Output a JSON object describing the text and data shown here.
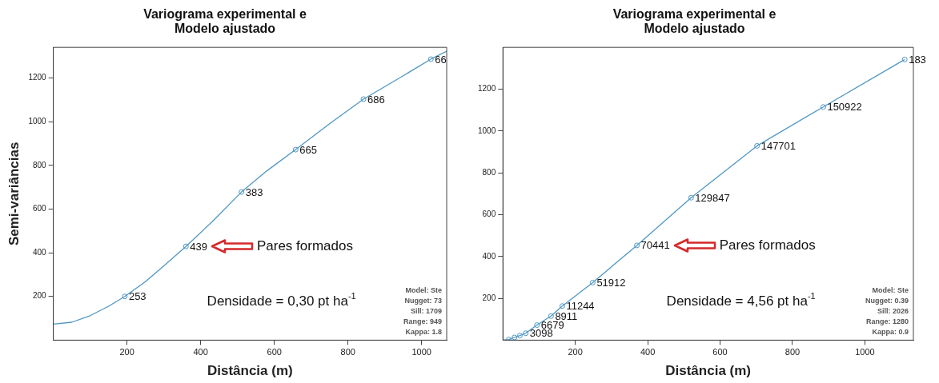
{
  "chart_data": [
    {
      "type": "scatter",
      "title": "Variograma experimental e\nModelo ajustado",
      "xlabel": "Distância (m)",
      "ylabel": "Semi-variâncias",
      "xlim": [
        0,
        1068
      ],
      "ylim": [
        0,
        1340
      ],
      "xticks": [
        200,
        400,
        600,
        800,
        1000
      ],
      "yticks": [
        200,
        400,
        600,
        800,
        1000,
        1200
      ],
      "marker": "circle",
      "legend": false,
      "series": [
        {
          "type": "scatter",
          "color": "#4f97c4",
          "x": [
            194,
            360,
            511,
            658,
            842,
            1025
          ],
          "values": [
            200,
            429,
            678,
            872,
            1103,
            1286
          ]
        },
        {
          "type": "line",
          "color": "#4f97c4",
          "marker": "none",
          "x": [
            0,
            50,
            100,
            150,
            194,
            250,
            300,
            360,
            430,
            511,
            580,
            658,
            750,
            842,
            940,
            1025,
            1068
          ],
          "values": [
            73,
            82,
            112,
            155,
            200,
            268,
            340,
            429,
            540,
            678,
            775,
            872,
            990,
            1103,
            1200,
            1286,
            1322
          ]
        }
      ],
      "annotations": [
        {
          "text": "253",
          "x": 194,
          "y": 200
        },
        {
          "text": "439",
          "x": 360,
          "y": 429
        },
        {
          "text": "383",
          "x": 511,
          "y": 678
        },
        {
          "text": "665",
          "x": 658,
          "y": 872
        },
        {
          "text": "686",
          "x": 842,
          "y": 1103
        },
        {
          "text": "66",
          "x": 1025,
          "y": 1286
        },
        "Pares formados",
        "Densidade = 0,30 pt ha$^{-1}$",
        "Model: Ste",
        "Nugget: 73",
        "Sill: 1709",
        "Range: 949",
        "Kappa: 1.8"
      ]
    },
    {
      "type": "scatter",
      "title": "Variograma experimental e\nModelo ajustado",
      "xlabel": "Distância (m)",
      "xlim": [
        0,
        1134
      ],
      "ylim": [
        0,
        1400
      ],
      "xticks": [
        200,
        400,
        600,
        800,
        1000
      ],
      "yticks": [
        200,
        400,
        600,
        800,
        1000,
        1200
      ],
      "marker": "circle",
      "legend": false,
      "series": [
        {
          "type": "scatter",
          "color": "#4f97c4",
          "x": [
            16,
            32,
            47,
            63,
            94,
            133,
            164,
            248,
            370,
            520,
            702,
            885,
            1110
          ],
          "values": [
            3,
            13,
            22,
            33,
            72,
            115,
            163,
            275,
            453,
            681,
            929,
            1115,
            1342
          ]
        },
        {
          "type": "line",
          "color": "#4f97c4",
          "marker": "none",
          "x": [
            0,
            16,
            32,
            47,
            63,
            94,
            133,
            164,
            248,
            370,
            520,
            702,
            885,
            1110
          ],
          "values": [
            0,
            3,
            13,
            22,
            33,
            72,
            115,
            163,
            275,
            453,
            681,
            929,
            1115,
            1342
          ]
        }
      ],
      "annotations": [
        {
          "text": "3098",
          "x": 63,
          "y": 33
        },
        {
          "text": "6679",
          "x": 94,
          "y": 72
        },
        {
          "text": "8911",
          "x": 133,
          "y": 115
        },
        {
          "text": "11244",
          "x": 164,
          "y": 163
        },
        {
          "text": "51912",
          "x": 248,
          "y": 275
        },
        {
          "text": "70441",
          "x": 370,
          "y": 453
        },
        {
          "text": "129847",
          "x": 520,
          "y": 681
        },
        {
          "text": "147701",
          "x": 702,
          "y": 929
        },
        {
          "text": "150922",
          "x": 885,
          "y": 1115
        },
        {
          "text": "183",
          "x": 1110,
          "y": 1342
        },
        "Pares formados",
        "Densidade = 4,56 pt ha$^{-1}$",
        "Model: Ste",
        "Nugget: 0.39",
        "Sill: 2026",
        "Range: 1280",
        "Kappa: 0.9"
      ]
    }
  ]
}
